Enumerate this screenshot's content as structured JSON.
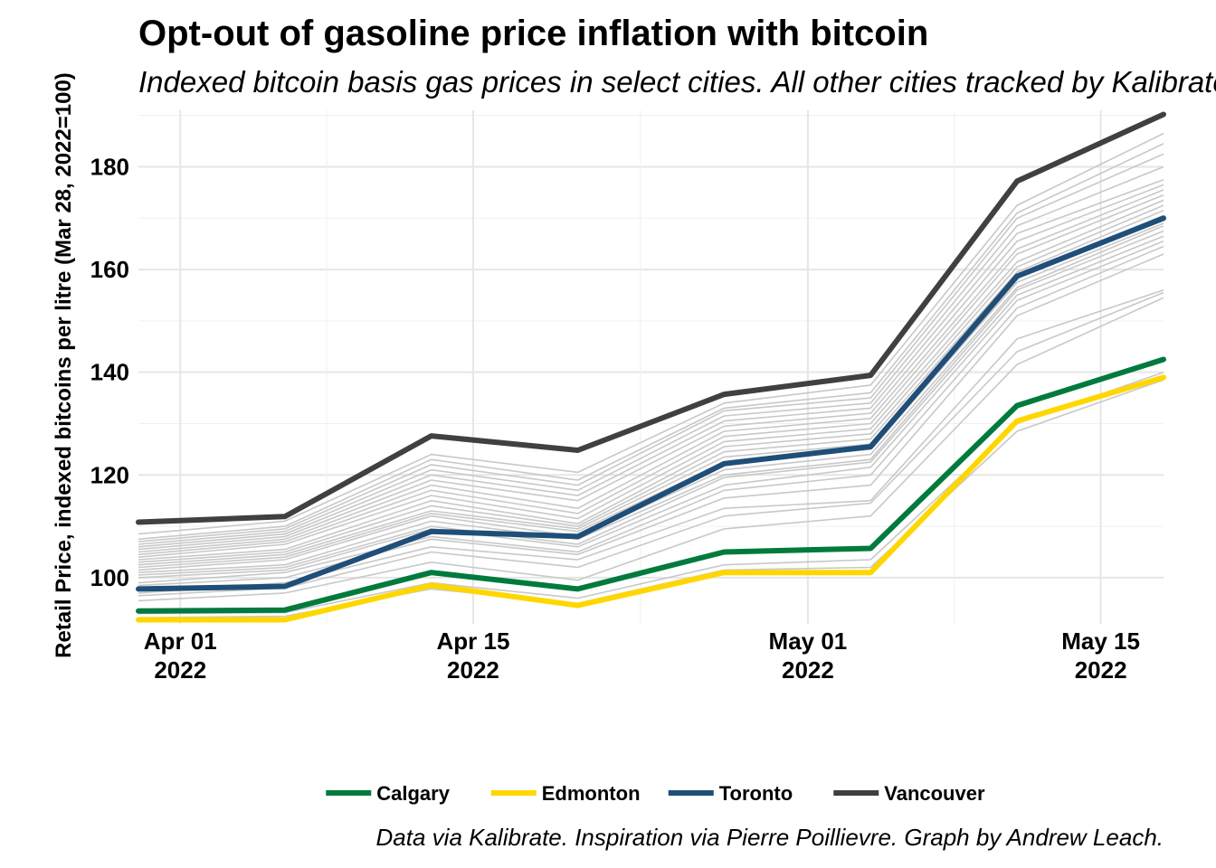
{
  "chart_data": {
    "type": "line",
    "title": "Opt-out of gasoline price inflation with bitcoin",
    "subtitle": "Indexed bitcoin basis gas prices in select cities. All other cities tracked by Kalibrate shown in grey.",
    "ylabel": "Retail Price, indexed bitcoins per litre (Mar 28, 2022=100)",
    "xlabel": "",
    "caption": "Data via Kalibrate. Inspiration via Pierre Poillievre. Graph by Andrew Leach.",
    "x_dates": [
      "2022-03-28",
      "2022-04-04",
      "2022-04-11",
      "2022-04-18",
      "2022-04-25",
      "2022-05-02",
      "2022-05-09",
      "2022-05-16"
    ],
    "x_ticks": [
      {
        "date": "2022-03-30",
        "line1": "Apr 01",
        "line2": "2022"
      },
      {
        "date": "2022-04-13",
        "line1": "Apr 15",
        "line2": "2022"
      },
      {
        "date": "2022-04-29",
        "line1": "May 01",
        "line2": "2022"
      },
      {
        "date": "2022-05-13",
        "line1": "May 15",
        "line2": "2022"
      }
    ],
    "y_ticks": [
      100,
      120,
      140,
      160,
      180
    ],
    "ylim": [
      91,
      191
    ],
    "grid": true,
    "legend_position": "bottom",
    "series": [
      {
        "name": "Calgary",
        "color": "#007A3D",
        "values": [
          93.5,
          93.7,
          101.0,
          97.8,
          105.0,
          105.7,
          133.5,
          142.5
        ]
      },
      {
        "name": "Edmonton",
        "color": "#FFD700",
        "values": [
          91.8,
          91.8,
          98.5,
          94.6,
          101.0,
          101.0,
          130.5,
          139.0
        ]
      },
      {
        "name": "Toronto",
        "color": "#1F4E79",
        "values": [
          97.8,
          98.3,
          109.0,
          108.0,
          122.2,
          125.5,
          158.7,
          170.0
        ]
      },
      {
        "name": "Vancouver",
        "color": "#404040",
        "values": [
          110.8,
          111.9,
          127.6,
          124.8,
          135.7,
          139.4,
          177.2,
          190.2
        ]
      }
    ],
    "background_series_color": "#C8C8C8",
    "background_series": [
      [
        92.2,
        92.5,
        97.8,
        95.0,
        101.5,
        102.0,
        128.5,
        138.5
      ],
      [
        93.0,
        93.2,
        99.0,
        96.0,
        102.5,
        103.5,
        130.0,
        140.0
      ],
      [
        95.5,
        97.0,
        103.0,
        99.5,
        109.5,
        112.0,
        141.5,
        154.5
      ],
      [
        96.5,
        98.0,
        105.0,
        102.0,
        112.0,
        114.5,
        144.0,
        155.5
      ],
      [
        97.0,
        99.0,
        106.0,
        103.5,
        113.5,
        115.0,
        146.5,
        156.0
      ],
      [
        98.5,
        100.0,
        107.5,
        104.5,
        115.5,
        118.0,
        151.0,
        163.0
      ],
      [
        99.0,
        101.0,
        108.0,
        105.0,
        117.0,
        120.0,
        152.5,
        164.5
      ],
      [
        100.0,
        101.5,
        109.5,
        106.0,
        118.0,
        121.5,
        154.0,
        165.5
      ],
      [
        100.5,
        102.0,
        110.0,
        106.5,
        119.5,
        122.5,
        155.0,
        166.5
      ],
      [
        101.0,
        102.5,
        111.0,
        107.5,
        120.0,
        123.0,
        156.0,
        167.5
      ],
      [
        101.5,
        103.5,
        112.0,
        108.0,
        121.0,
        124.0,
        156.5,
        168.5
      ],
      [
        102.0,
        104.0,
        112.5,
        109.0,
        122.5,
        125.0,
        157.5,
        169.0
      ],
      [
        102.5,
        104.5,
        113.0,
        109.5,
        123.5,
        126.0,
        158.5,
        170.5
      ],
      [
        103.0,
        105.0,
        114.0,
        110.0,
        124.5,
        127.0,
        159.5,
        171.5
      ],
      [
        103.5,
        105.5,
        115.0,
        110.5,
        125.5,
        128.0,
        160.5,
        172.5
      ],
      [
        104.0,
        106.5,
        116.0,
        111.5,
        126.5,
        129.0,
        161.5,
        173.5
      ],
      [
        104.5,
        107.0,
        117.0,
        112.5,
        127.5,
        130.0,
        163.0,
        174.5
      ],
      [
        105.0,
        107.5,
        118.0,
        113.5,
        128.5,
        131.0,
        164.0,
        175.5
      ],
      [
        105.5,
        108.0,
        119.0,
        115.0,
        129.5,
        132.0,
        165.5,
        176.5
      ],
      [
        106.0,
        108.5,
        120.0,
        116.0,
        130.5,
        133.0,
        167.0,
        177.5
      ],
      [
        106.5,
        109.0,
        121.0,
        117.0,
        131.5,
        134.0,
        168.5,
        180.0
      ],
      [
        107.0,
        109.5,
        122.0,
        118.0,
        132.5,
        135.0,
        170.0,
        182.5
      ],
      [
        107.5,
        110.0,
        123.0,
        119.0,
        133.0,
        136.0,
        171.0,
        184.5
      ],
      [
        108.5,
        111.0,
        124.0,
        120.5,
        134.0,
        137.5,
        172.5,
        186.5
      ]
    ]
  }
}
